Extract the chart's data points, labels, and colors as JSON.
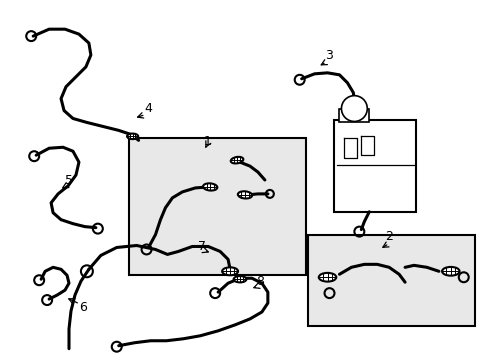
{
  "bg_color": "#ffffff",
  "line_color": "#000000",
  "box_fill": "#e8e8e8",
  "fig_width": 4.89,
  "fig_height": 3.6,
  "dpi": 100
}
